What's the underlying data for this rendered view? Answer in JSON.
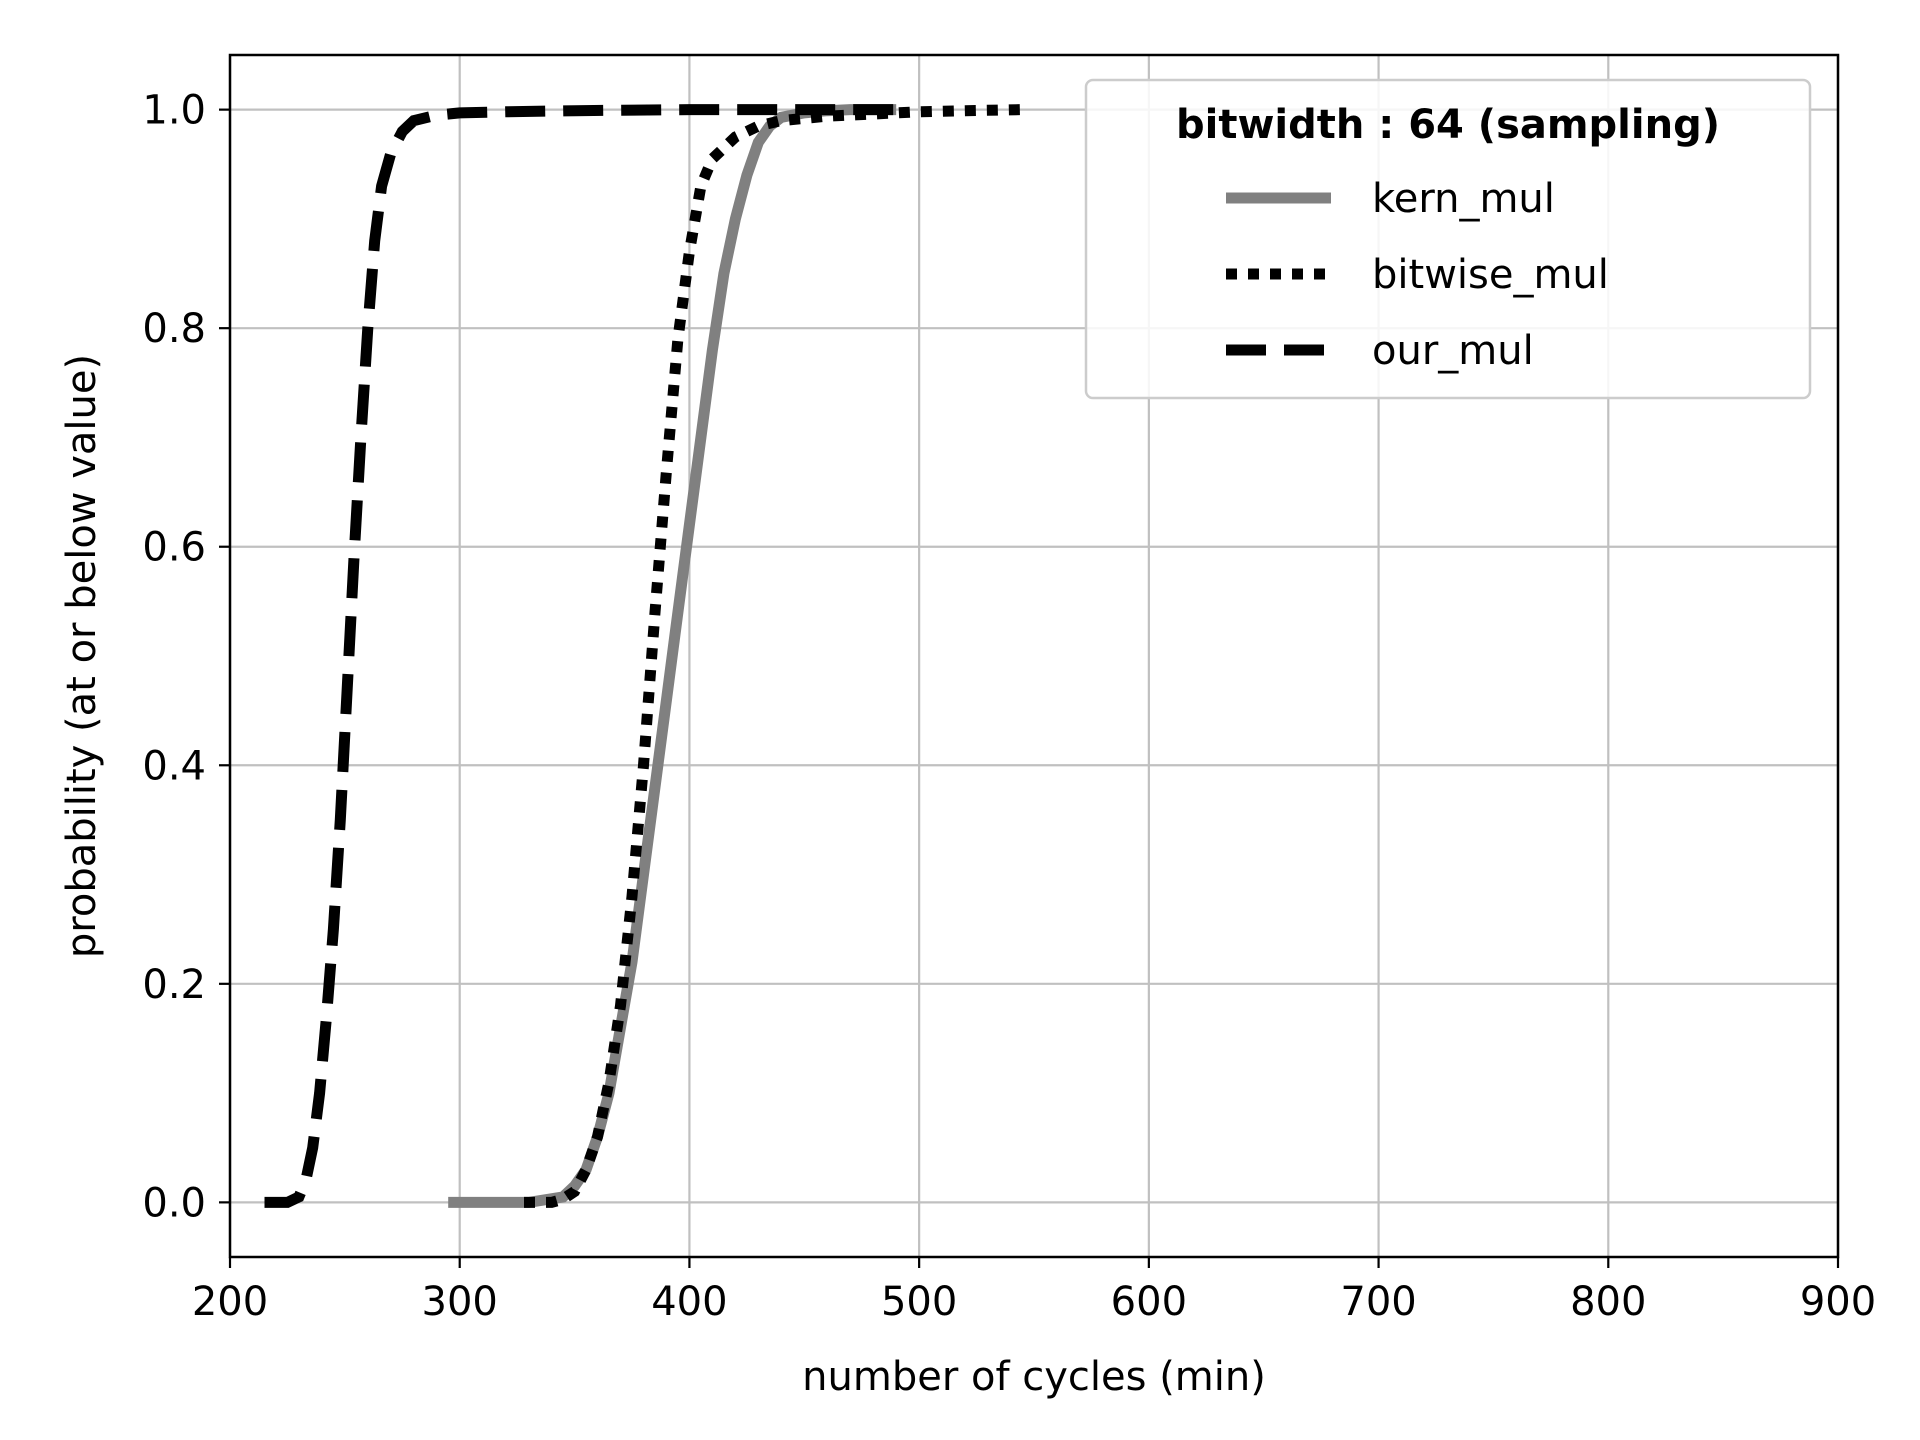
{
  "chart_data": {
    "type": "line",
    "title": "",
    "xlabel": "number of cycles (min)",
    "ylabel": "probability (at or below value)",
    "xlim": [
      200,
      900
    ],
    "ylim": [
      -0.05,
      1.05
    ],
    "x_ticks": [
      200,
      300,
      400,
      500,
      600,
      700,
      800,
      900
    ],
    "y_ticks": [
      0.0,
      0.2,
      0.4,
      0.6,
      0.8,
      1.0
    ],
    "x_tick_labels": [
      "200",
      "300",
      "400",
      "500",
      "600",
      "700",
      "800",
      "900"
    ],
    "y_tick_labels": [
      "0.0",
      "0.2",
      "0.4",
      "0.6",
      "0.8",
      "1.0"
    ],
    "grid": true,
    "legend": {
      "title": "bitwidth :  64 (sampling)",
      "placement": "top-right"
    },
    "series": [
      {
        "name": "kern_mul",
        "color": "#808080",
        "style": "solid",
        "x": [
          295,
          330,
          345,
          350,
          355,
          360,
          365,
          370,
          375,
          380,
          385,
          390,
          395,
          400,
          405,
          410,
          415,
          420,
          425,
          430,
          435,
          440,
          450,
          460,
          470,
          490
        ],
        "y": [
          0.0,
          0.0,
          0.005,
          0.015,
          0.03,
          0.06,
          0.1,
          0.16,
          0.22,
          0.3,
          0.38,
          0.46,
          0.54,
          0.62,
          0.7,
          0.78,
          0.85,
          0.9,
          0.94,
          0.97,
          0.985,
          0.993,
          0.997,
          0.999,
          1.0,
          1.0
        ]
      },
      {
        "name": "bitwise_mul",
        "color": "#000000",
        "style": "dotted",
        "x": [
          328,
          340,
          345,
          350,
          355,
          360,
          365,
          370,
          375,
          380,
          385,
          390,
          395,
          400,
          405,
          410,
          420,
          430,
          440,
          460,
          480,
          500,
          520,
          545
        ],
        "y": [
          0.0,
          0.0,
          0.003,
          0.01,
          0.03,
          0.06,
          0.11,
          0.18,
          0.28,
          0.4,
          0.54,
          0.67,
          0.79,
          0.87,
          0.93,
          0.955,
          0.975,
          0.985,
          0.99,
          0.994,
          0.996,
          0.998,
          0.999,
          1.0
        ]
      },
      {
        "name": "our_mul",
        "color": "#000000",
        "style": "dashed",
        "x": [
          215,
          225,
          230,
          233,
          236,
          239,
          242,
          245,
          248,
          251,
          254,
          257,
          260,
          263,
          266,
          270,
          275,
          280,
          290,
          300,
          320,
          350,
          400,
          440,
          490
        ],
        "y": [
          0.0,
          0.0,
          0.005,
          0.02,
          0.05,
          0.1,
          0.17,
          0.25,
          0.35,
          0.47,
          0.59,
          0.7,
          0.8,
          0.88,
          0.93,
          0.96,
          0.98,
          0.99,
          0.995,
          0.997,
          0.998,
          0.999,
          1.0,
          1.0,
          1.0
        ]
      }
    ]
  }
}
